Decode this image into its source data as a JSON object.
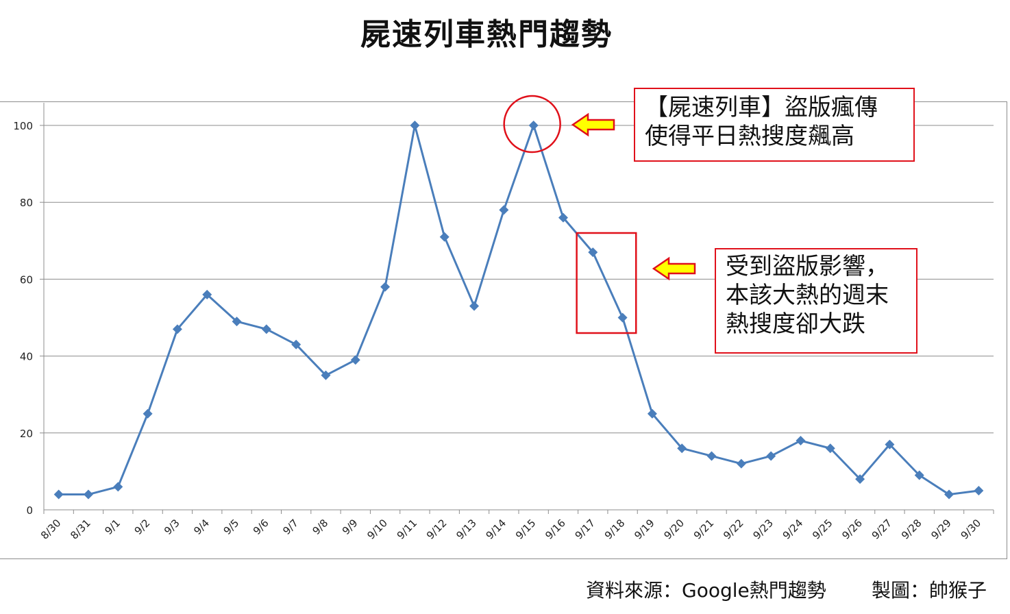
{
  "chart_data": {
    "type": "line",
    "title": "屍速列車熱門趨勢",
    "xlabel": "",
    "ylabel": "",
    "categories": [
      "8/30",
      "8/31",
      "9/1",
      "9/2",
      "9/3",
      "9/4",
      "9/5",
      "9/6",
      "9/7",
      "9/8",
      "9/9",
      "9/10",
      "9/11",
      "9/12",
      "9/13",
      "9/14",
      "9/15",
      "9/16",
      "9/17",
      "9/18",
      "9/19",
      "9/20",
      "9/21",
      "9/22",
      "9/23",
      "9/24",
      "9/25",
      "9/26",
      "9/27",
      "9/28",
      "9/29",
      "9/30"
    ],
    "series": [
      {
        "values": [
          4,
          4,
          6,
          25,
          47,
          56,
          49,
          47,
          43,
          35,
          39,
          58,
          100,
          71,
          53,
          78,
          100,
          76,
          67,
          50,
          25,
          16,
          14,
          12,
          14,
          18,
          16,
          8,
          17,
          9,
          4,
          5
        ]
      }
    ],
    "ylim": [
      0,
      100
    ],
    "yticks": [
      0,
      20,
      40,
      60,
      80,
      100
    ],
    "grid": true,
    "legend": "none",
    "series_color": "#4a7ebb",
    "annotations": [
      {
        "text_lines": [
          "【屍速列車】盜版瘋傳",
          "使得平日熱搜度飆高"
        ],
        "target": "9/15"
      },
      {
        "text_lines": [
          "受到盜版影響，",
          "本該大熱的週末",
          "熱搜度卻大跌"
        ],
        "target": [
          "9/17",
          "9/18"
        ]
      }
    ],
    "annotation_color": "#e0101a",
    "arrow_fill": "#ffff00"
  },
  "footer": {
    "source": "資料來源：Google熱門趨勢",
    "maker": "製圖：帥猴子"
  }
}
